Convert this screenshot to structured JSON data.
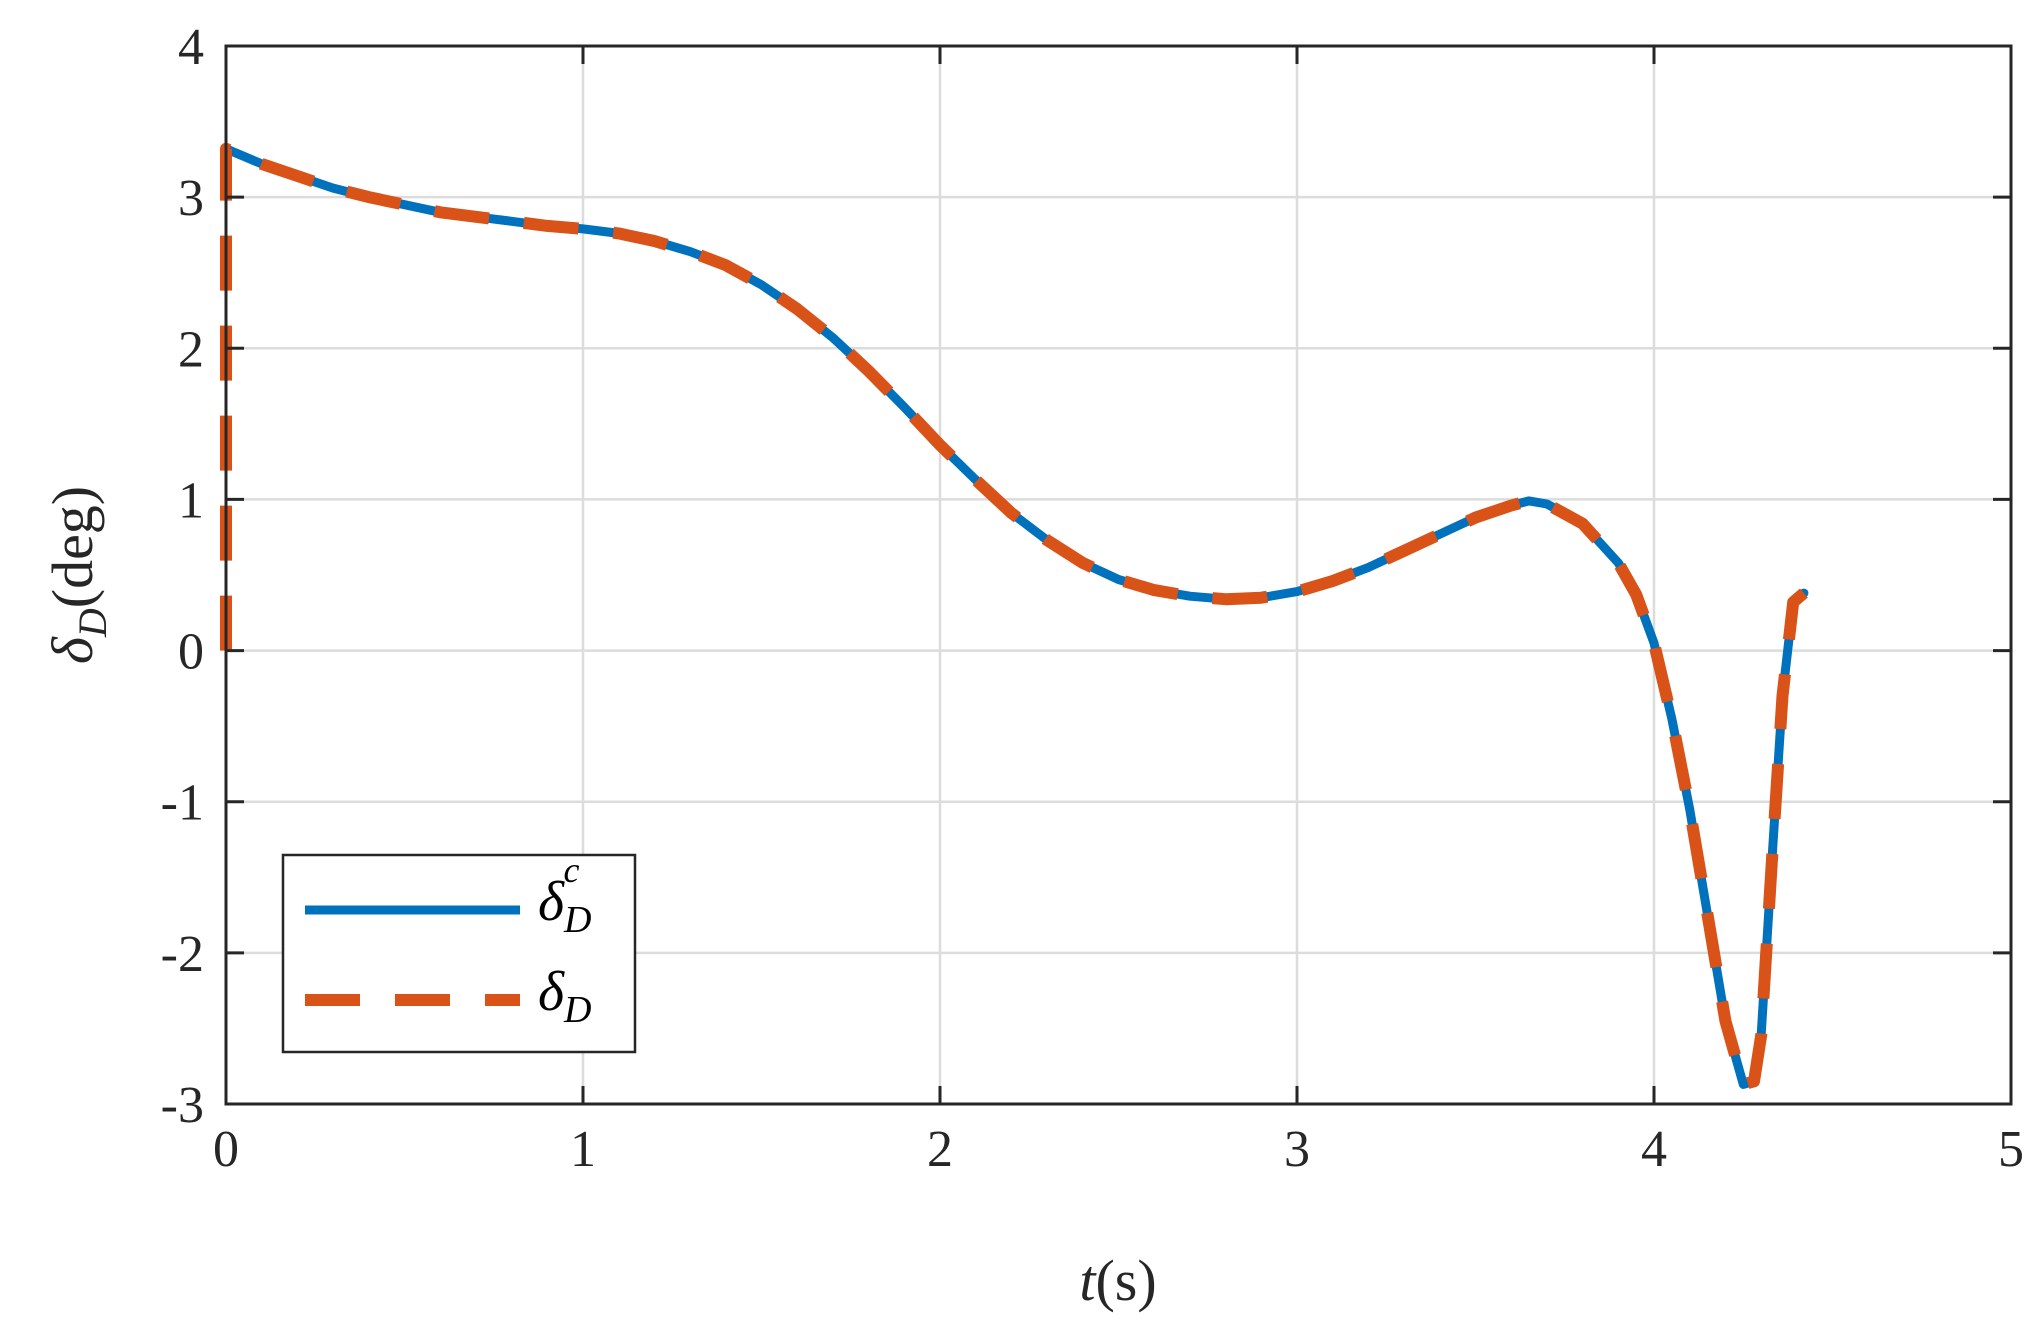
{
  "chart_data": {
    "type": "line",
    "title": "",
    "xlabel": {
      "main": "t",
      "unit": "(s)"
    },
    "ylabel": {
      "main": "δ",
      "sub": "D",
      "unit": "(deg)"
    },
    "xlim": [
      0,
      5
    ],
    "ylim": [
      -3,
      4
    ],
    "xticks": [
      0,
      1,
      2,
      3,
      4,
      5
    ],
    "yticks": [
      -3,
      -2,
      -1,
      0,
      1,
      2,
      3,
      4
    ],
    "xtick_labels": [
      "0",
      "1",
      "2",
      "3",
      "4",
      "5"
    ],
    "ytick_labels": [
      "-3",
      "-2",
      "-1",
      "0",
      "1",
      "2",
      "3",
      "4"
    ],
    "grid": true,
    "box": true,
    "legend_position": "bottom-left",
    "series": [
      {
        "name": "δ_D^c",
        "legend": {
          "main": "δ",
          "sub": "D",
          "sup": "c"
        },
        "style": "solid",
        "color": "#0072bd",
        "x": [
          0,
          0.1,
          0.2,
          0.3,
          0.4,
          0.5,
          0.6,
          0.7,
          0.8,
          0.9,
          1.0,
          1.1,
          1.2,
          1.3,
          1.4,
          1.5,
          1.6,
          1.7,
          1.8,
          1.9,
          2.0,
          2.1,
          2.2,
          2.3,
          2.4,
          2.5,
          2.6,
          2.7,
          2.8,
          2.9,
          3.0,
          3.1,
          3.2,
          3.3,
          3.4,
          3.5,
          3.6,
          3.65,
          3.7,
          3.8,
          3.9,
          3.95,
          4.0,
          4.05,
          4.1,
          4.15,
          4.2,
          4.25,
          4.28,
          4.3,
          4.33,
          4.36,
          4.39,
          4.42
        ],
        "y": [
          3.32,
          3.22,
          3.14,
          3.06,
          3.0,
          2.95,
          2.9,
          2.87,
          2.84,
          2.81,
          2.79,
          2.76,
          2.71,
          2.64,
          2.55,
          2.42,
          2.26,
          2.07,
          1.85,
          1.61,
          1.36,
          1.13,
          0.91,
          0.73,
          0.58,
          0.47,
          0.4,
          0.36,
          0.34,
          0.35,
          0.39,
          0.46,
          0.55,
          0.66,
          0.77,
          0.88,
          0.96,
          0.99,
          0.97,
          0.84,
          0.58,
          0.37,
          0.05,
          -0.45,
          -1.05,
          -1.75,
          -2.45,
          -2.87,
          -2.85,
          -2.55,
          -1.4,
          -0.3,
          0.32,
          0.38
        ]
      },
      {
        "name": "δ_D",
        "legend": {
          "main": "δ",
          "sub": "D"
        },
        "style": "dashed",
        "color": "#d95319",
        "x": [
          0,
          0,
          0.1,
          0.2,
          0.3,
          0.4,
          0.5,
          0.6,
          0.7,
          0.8,
          0.9,
          1.0,
          1.1,
          1.2,
          1.3,
          1.4,
          1.5,
          1.6,
          1.7,
          1.8,
          1.9,
          2.0,
          2.1,
          2.2,
          2.3,
          2.4,
          2.5,
          2.6,
          2.7,
          2.8,
          2.9,
          3.0,
          3.1,
          3.2,
          3.3,
          3.4,
          3.5,
          3.6,
          3.65,
          3.7,
          3.8,
          3.9,
          3.95,
          4.0,
          4.05,
          4.1,
          4.15,
          4.2,
          4.25,
          4.28,
          4.3,
          4.33,
          4.36,
          4.39,
          4.42
        ],
        "y": [
          0.0,
          3.32,
          3.22,
          3.14,
          3.06,
          3.0,
          2.95,
          2.9,
          2.87,
          2.84,
          2.81,
          2.79,
          2.76,
          2.71,
          2.64,
          2.55,
          2.42,
          2.26,
          2.07,
          1.85,
          1.61,
          1.36,
          1.13,
          0.91,
          0.73,
          0.58,
          0.47,
          0.4,
          0.36,
          0.34,
          0.35,
          0.39,
          0.46,
          0.55,
          0.66,
          0.77,
          0.88,
          0.96,
          0.99,
          0.97,
          0.84,
          0.58,
          0.37,
          0.05,
          -0.45,
          -1.05,
          -1.75,
          -2.45,
          -2.87,
          -2.85,
          -2.55,
          -1.4,
          -0.3,
          0.32,
          0.38
        ]
      }
    ]
  }
}
